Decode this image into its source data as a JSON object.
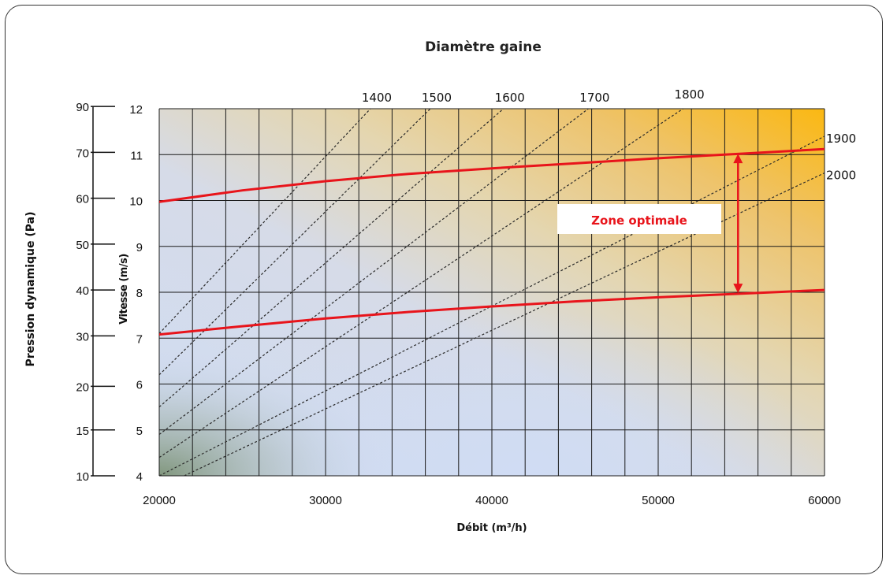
{
  "chart_data": {
    "type": "line",
    "title": "Diamètre gaine",
    "xlabel": "Débit (m³/h)",
    "ylabel": "Vitesse (m/s)",
    "ylabel_secondary": "Pression dynamique (Pa)",
    "x_range": [
      20000,
      60000
    ],
    "x_ticks": [
      20000,
      30000,
      40000,
      50000,
      60000
    ],
    "y_range": [
      4,
      12
    ],
    "y_ticks": [
      4,
      5,
      6,
      7,
      8,
      9,
      10,
      11,
      12
    ],
    "pressure_ticks": [
      {
        "label": "10",
        "velocity": 4
      },
      {
        "label": "15",
        "velocity": 5
      },
      {
        "label": "20",
        "velocity": 5.95
      },
      {
        "label": "30",
        "velocity": 7.05
      },
      {
        "label": "40",
        "velocity": 8.05
      },
      {
        "label": "50",
        "velocity": 9.05
      },
      {
        "label": "60",
        "velocity": 10.05
      },
      {
        "label": "70",
        "velocity": 11.05
      },
      {
        "label": "90",
        "velocity": 12.05
      }
    ],
    "grid": true,
    "diameter_lines": [
      {
        "label": "1400",
        "x": [
          20000,
          32700
        ],
        "y": [
          7.1,
          12.0
        ]
      },
      {
        "label": "1500",
        "x": [
          20000,
          36300
        ],
        "y": [
          6.2,
          12.0
        ]
      },
      {
        "label": "1600",
        "x": [
          20000,
          40700
        ],
        "y": [
          5.5,
          12.0
        ]
      },
      {
        "label": "1700",
        "x": [
          20000,
          45800
        ],
        "y": [
          4.9,
          12.0
        ]
      },
      {
        "label": "1800",
        "x": [
          20000,
          51500
        ],
        "y": [
          4.4,
          12.0
        ]
      },
      {
        "label": "1900",
        "x": [
          20000,
          60000
        ],
        "y": [
          4.0,
          11.4
        ]
      },
      {
        "label": "2000",
        "x": [
          21500,
          60000
        ],
        "y": [
          4.0,
          10.6
        ]
      }
    ],
    "limit_curves": [
      {
        "name": "upper",
        "color": "#e8141b",
        "x": [
          20000,
          25000,
          30000,
          35000,
          40000,
          45000,
          50000,
          55000,
          60000
        ],
        "y": [
          9.97,
          10.22,
          10.42,
          10.58,
          10.7,
          10.81,
          10.92,
          11.02,
          11.12
        ]
      },
      {
        "name": "lower",
        "color": "#e8141b",
        "x": [
          20000,
          25000,
          30000,
          35000,
          40000,
          45000,
          50000,
          55000,
          60000
        ],
        "y": [
          7.08,
          7.26,
          7.43,
          7.57,
          7.69,
          7.8,
          7.89,
          7.97,
          8.05
        ]
      }
    ],
    "annotation": {
      "text": "Zone optimale",
      "color": "#e8141b",
      "arrow_x": 54800,
      "arrow_y": [
        7.98,
        11.02
      ]
    }
  }
}
